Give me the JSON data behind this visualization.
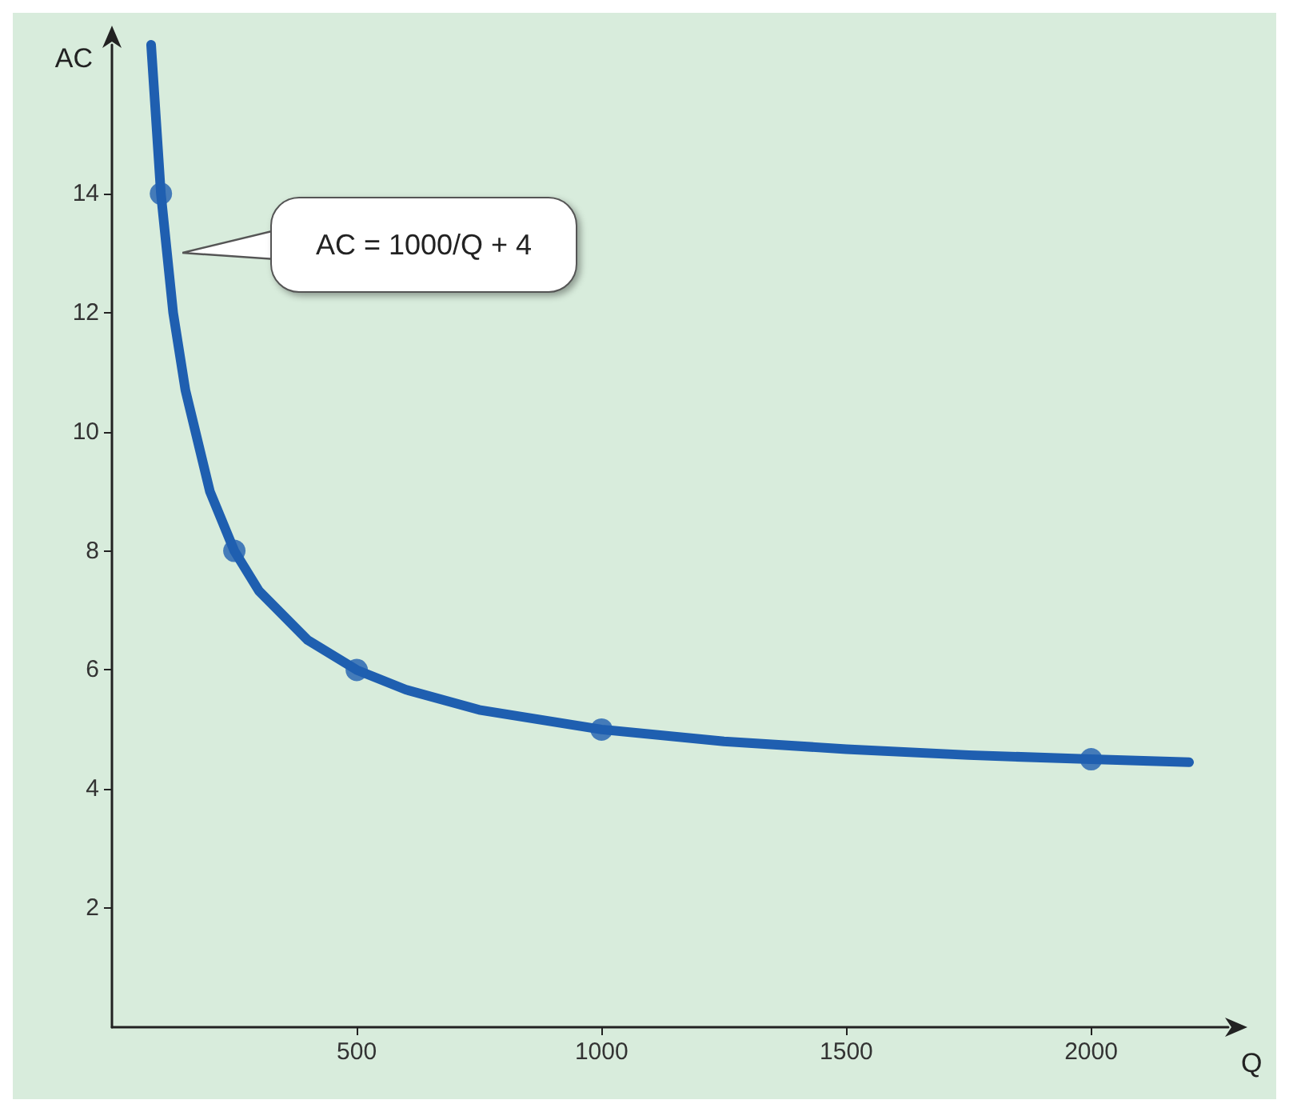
{
  "chart_data": {
    "type": "line",
    "xlabel": "Q",
    "ylabel": "AC",
    "xlim": [
      0,
      2280
    ],
    "ylim": [
      0,
      16.5
    ],
    "xticks": [
      500,
      1000,
      1500,
      2000
    ],
    "yticks": [
      2,
      4,
      6,
      8,
      10,
      12,
      14
    ],
    "grid": false,
    "series": [
      {
        "type": "line",
        "color": "#1f5fb0",
        "marker": "none",
        "x": [
          80,
          100,
          125,
          150,
          200,
          250,
          300,
          400,
          500,
          600,
          750,
          1000,
          1250,
          1500,
          1750,
          2000,
          2200
        ],
        "values": [
          16.5,
          14,
          12,
          10.7,
          9,
          8,
          7.33,
          6.5,
          6,
          5.67,
          5.33,
          5,
          4.8,
          4.67,
          4.57,
          4.5,
          4.45
        ]
      },
      {
        "type": "scatter",
        "color": "#1f5fb0",
        "marker": "circle",
        "x": [
          100,
          250,
          500,
          1000,
          2000
        ],
        "values": [
          14,
          8,
          6,
          5,
          4.5
        ]
      }
    ],
    "annotations": [
      "AC = 1000/Q + 4"
    ]
  }
}
